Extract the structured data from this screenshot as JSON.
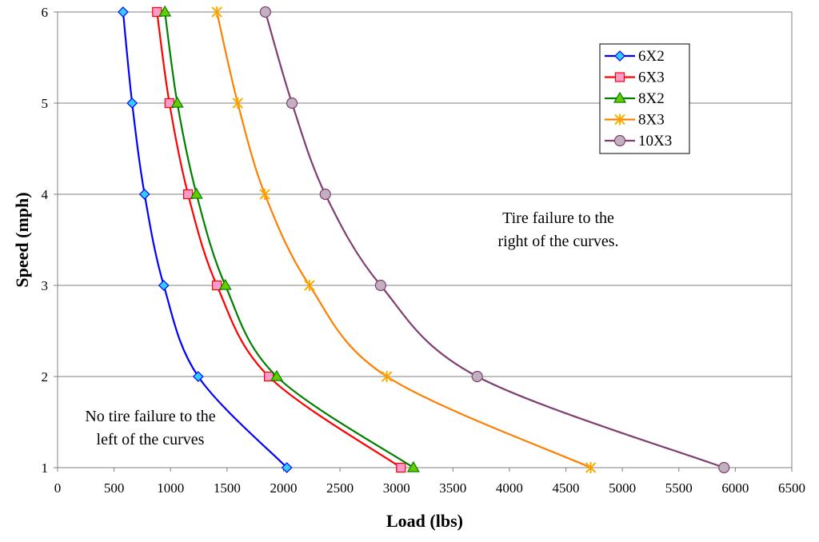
{
  "chart_data": {
    "type": "line",
    "title": "",
    "xlabel": "Load (lbs)",
    "ylabel": "Speed (mph)",
    "xlim": [
      0,
      6500
    ],
    "ylim": [
      1,
      6
    ],
    "xticks": [
      0,
      500,
      1000,
      1500,
      2000,
      2500,
      3000,
      3500,
      4000,
      4500,
      5000,
      5500,
      6000,
      6500
    ],
    "yticks": [
      1,
      2,
      3,
      4,
      5,
      6
    ],
    "grid": "horizontal",
    "legend_position": "top-right",
    "y": [
      6,
      5,
      4,
      3,
      2,
      1
    ],
    "series": [
      {
        "name": "6X2",
        "x": [
          580,
          660,
          770,
          940,
          1245,
          2030
        ],
        "color": "#0000ff",
        "marker": "diamond",
        "marker_fill": "#33ccff"
      },
      {
        "name": "6X3",
        "x": [
          880,
          990,
          1155,
          1410,
          1870,
          3040
        ],
        "color": "#ff0000",
        "marker": "square",
        "marker_fill": "#ff99cc"
      },
      {
        "name": "8X2",
        "x": [
          950,
          1060,
          1230,
          1485,
          1940,
          3150
        ],
        "color": "#008000",
        "marker": "triangle",
        "marker_fill": "#66cc00"
      },
      {
        "name": "8X3",
        "x": [
          1410,
          1595,
          1835,
          2230,
          2915,
          4720
        ],
        "color": "#ff8000",
        "marker": "star",
        "marker_fill": "#ffcc00"
      },
      {
        "name": "10X3",
        "x": [
          1840,
          2075,
          2370,
          2860,
          3715,
          5900
        ],
        "color": "#7f3f6f",
        "marker": "circle",
        "marker_fill": "#c0b0c0"
      }
    ],
    "annotations": [
      {
        "lines": [
          "Tire failure to the",
          "right of the curves."
        ]
      },
      {
        "lines": [
          "No tire failure to the",
          "left of the curves"
        ]
      }
    ]
  }
}
